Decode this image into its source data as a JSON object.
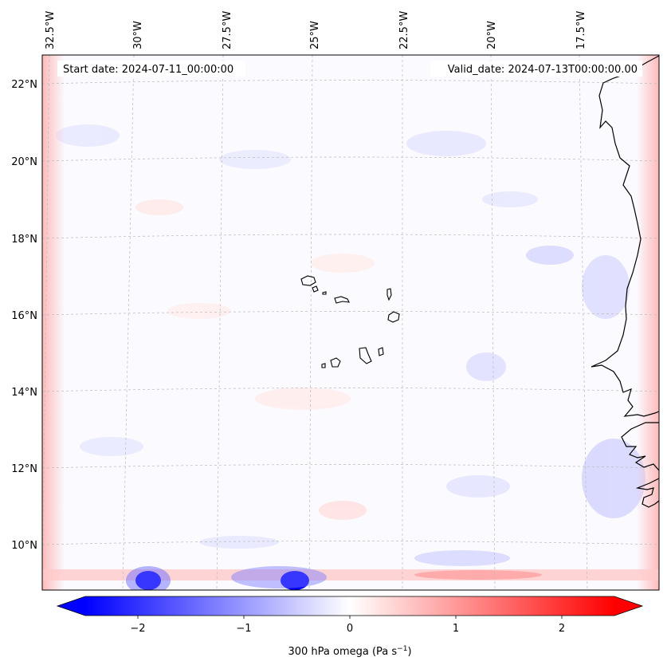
{
  "map": {
    "start_label": "Start date: 2024-07-11_00:00:00",
    "valid_label": "Valid_date: 2024-07-13T00:00:00.00",
    "variable": "300 hPa omega",
    "units": "Pa s⁻¹",
    "lon_labels": [
      "32.5°W",
      "30°W",
      "27.5°W",
      "25°W",
      "22.5°W",
      "20°W",
      "17.5°W"
    ],
    "lat_labels": [
      "22°N",
      "20°N",
      "18°N",
      "16°N",
      "14°N",
      "12°N",
      "10°N"
    ],
    "colorbar": {
      "ticks": [
        "−2",
        "−1",
        "0",
        "1",
        "2"
      ],
      "label": "300 hPa omega (Pa s",
      "label_exp": "−1",
      "label_end": ")",
      "range": [
        -2.5,
        2.5
      ],
      "colors": {
        "min": "#0000ff",
        "mid": "#ffffff",
        "max": "#ff0000"
      }
    },
    "colors": {
      "coastline": "#000000",
      "gridline": "#bbbbbb",
      "background": "#fafaff"
    }
  }
}
